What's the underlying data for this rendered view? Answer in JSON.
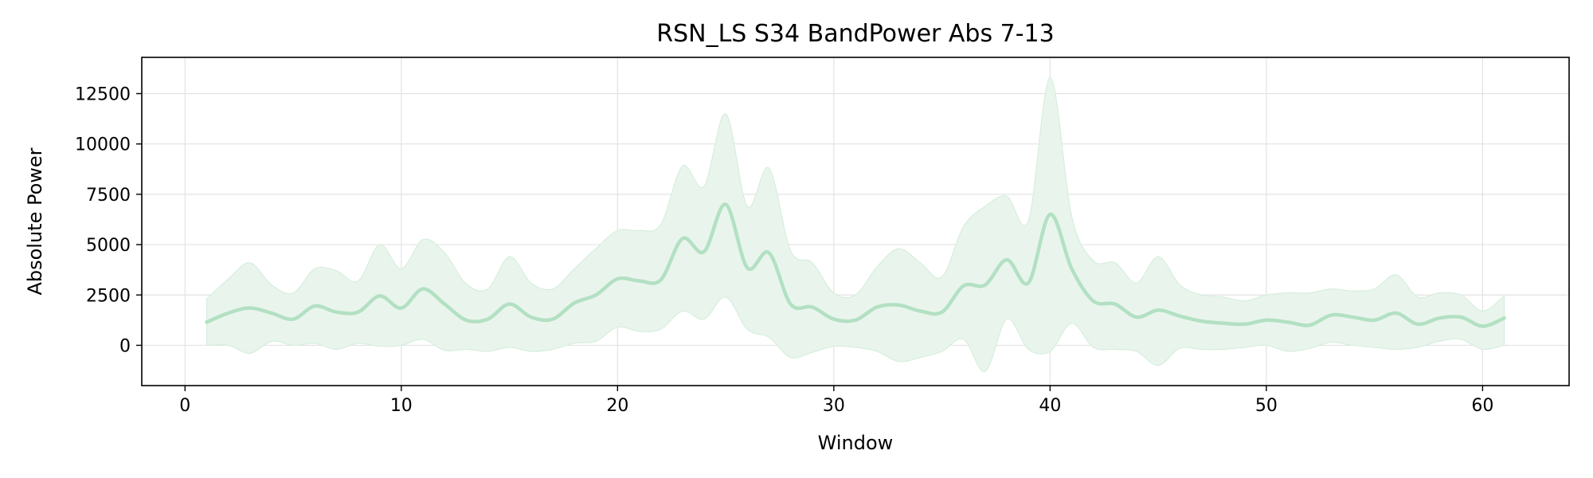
{
  "chart_data": {
    "type": "line",
    "title": "RSN_LS S34 BandPower Abs 7-13",
    "xlabel": "Window",
    "ylabel": "Absolute Power",
    "xlim": [
      -2,
      64
    ],
    "ylim": [
      -2000,
      14300
    ],
    "xticks": [
      0,
      10,
      20,
      30,
      40,
      50,
      60
    ],
    "yticks": [
      0,
      2500,
      5000,
      7500,
      10000,
      12500
    ],
    "grid": true,
    "legend": "none",
    "colors": {
      "line": "#b3e0c3",
      "band": "#e9f5ec",
      "band_edge": "#d6eedd",
      "grid": "#e3e3e3"
    },
    "x": [
      1,
      2,
      3,
      4,
      5,
      6,
      7,
      8,
      9,
      10,
      11,
      12,
      13,
      14,
      15,
      16,
      17,
      18,
      19,
      20,
      21,
      22,
      23,
      24,
      25,
      26,
      27,
      28,
      29,
      30,
      31,
      32,
      33,
      34,
      35,
      36,
      37,
      38,
      39,
      40,
      41,
      42,
      43,
      44,
      45,
      46,
      47,
      48,
      49,
      50,
      51,
      52,
      53,
      54,
      55,
      56,
      57,
      58,
      59,
      60,
      61
    ],
    "series": [
      {
        "values": [
          1150,
          1600,
          1850,
          1600,
          1300,
          1950,
          1650,
          1650,
          2450,
          1850,
          2800,
          2050,
          1250,
          1300,
          2050,
          1400,
          1300,
          2100,
          2500,
          3300,
          3200,
          3250,
          5300,
          4650,
          7000,
          3850,
          4600,
          2050,
          1900,
          1300,
          1250,
          1900,
          2000,
          1700,
          1650,
          2950,
          3000,
          4250,
          3100,
          6500,
          3800,
          2200,
          2050,
          1400,
          1750,
          1450,
          1200,
          1100,
          1050,
          1250,
          1150,
          1000,
          1500,
          1400,
          1250,
          1600,
          1050,
          1350,
          1400,
          950,
          1350
        ],
        "upper": [
          2300,
          3300,
          4100,
          3000,
          2600,
          3800,
          3700,
          3200,
          5000,
          3800,
          5250,
          4600,
          3050,
          2800,
          4400,
          3100,
          2800,
          3800,
          4800,
          5700,
          5700,
          6000,
          8900,
          7900,
          11500,
          6900,
          8800,
          4700,
          4100,
          2600,
          2500,
          3900,
          4800,
          4100,
          3400,
          5900,
          6900,
          7400,
          6200,
          13300,
          6400,
          4200,
          4100,
          3100,
          4400,
          3000,
          2500,
          2400,
          2200,
          2500,
          2600,
          2600,
          2800,
          2700,
          2800,
          3500,
          2400,
          2600,
          2500,
          1700,
          2450
        ],
        "lower": [
          0,
          0,
          -400,
          200,
          0,
          100,
          -200,
          100,
          -50,
          0,
          300,
          -250,
          -200,
          -300,
          -100,
          -300,
          -200,
          100,
          200,
          900,
          700,
          800,
          1700,
          1300,
          2400,
          800,
          400,
          -600,
          -350,
          -50,
          -100,
          -300,
          -800,
          -600,
          -300,
          300,
          -1300,
          1300,
          -200,
          -300,
          1100,
          -100,
          -200,
          -300,
          -1000,
          -150,
          -200,
          -200,
          -100,
          0,
          -300,
          -150,
          150,
          0,
          -100,
          -200,
          -100,
          200,
          300,
          -200,
          0
        ]
      }
    ]
  }
}
